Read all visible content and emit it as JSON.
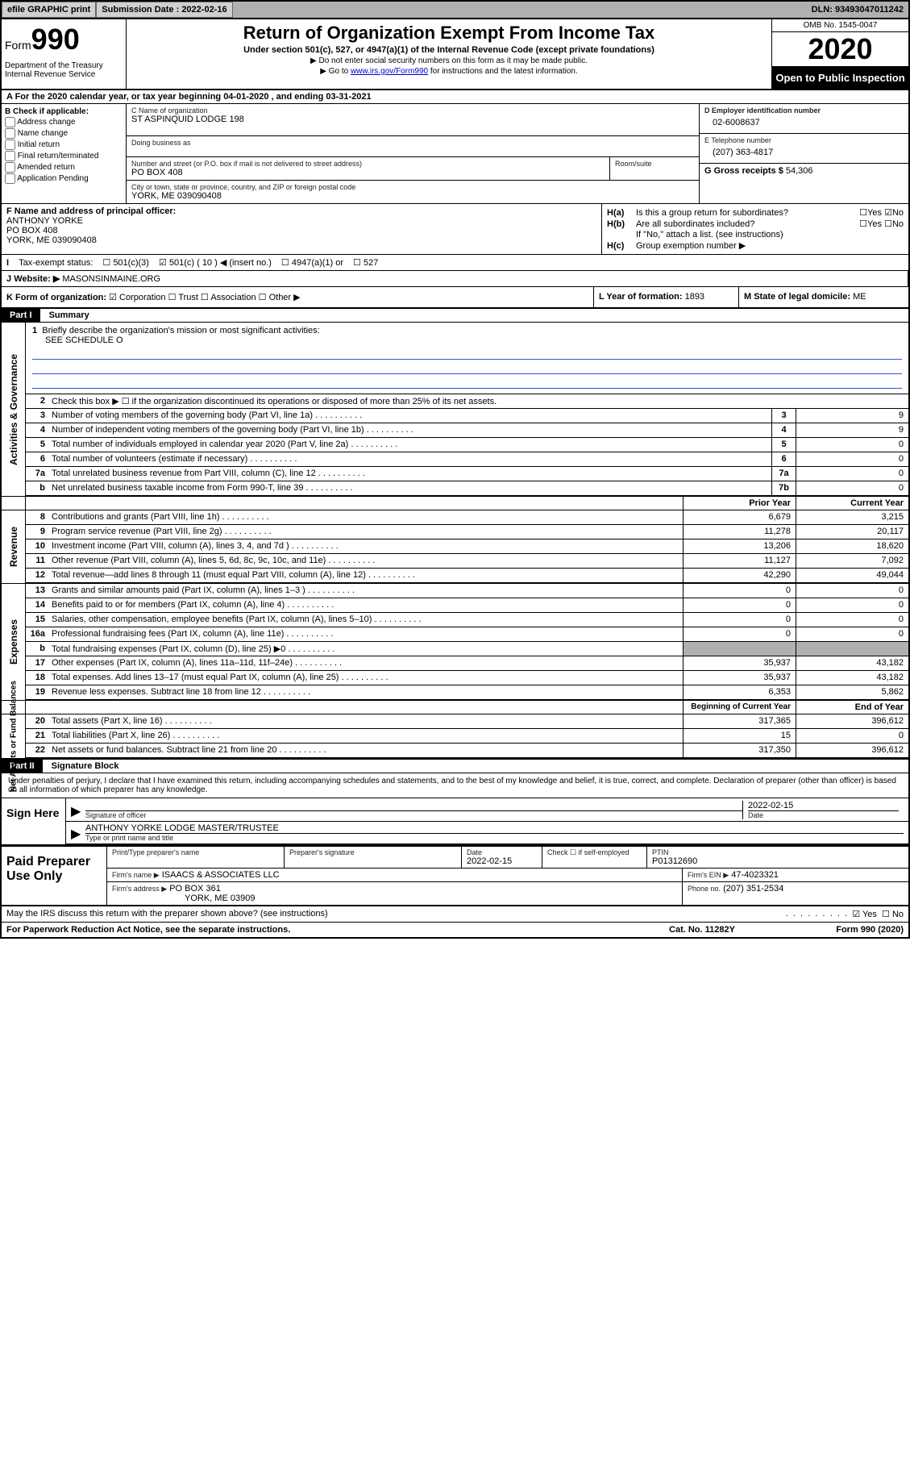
{
  "topbar": {
    "efile": "efile GRAPHIC print",
    "submission_label": "Submission Date : 2022-02-16",
    "dln": "DLN: 93493047011242"
  },
  "header": {
    "form_word": "Form",
    "form_num": "990",
    "dept": "Department of the Treasury\nInternal Revenue Service",
    "title": "Return of Organization Exempt From Income Tax",
    "subtitle": "Under section 501(c), 527, or 4947(a)(1) of the Internal Revenue Code (except private foundations)",
    "note1": "▶ Do not enter social security numbers on this form as it may be made public.",
    "note2_pre": "▶ Go to ",
    "note2_link": "www.irs.gov/Form990",
    "note2_post": " for instructions and the latest information.",
    "omb": "OMB No. 1545-0047",
    "year": "2020",
    "inspect": "Open to Public Inspection"
  },
  "row_a": "A For the 2020 calendar year, or tax year beginning 04-01-2020    , and ending 03-31-2021",
  "b": {
    "label": "B Check if applicable:",
    "opts": [
      "Address change",
      "Name change",
      "Initial return",
      "Final return/terminated",
      "Amended return",
      "Application Pending"
    ]
  },
  "c": {
    "name_lbl": "C Name of organization",
    "name": "ST ASPINQUID LODGE 198",
    "dba_lbl": "Doing business as",
    "dba": "",
    "street_lbl": "Number and street (or P.O. box if mail is not delivered to street address)",
    "street": "PO BOX 408",
    "room_lbl": "Room/suite",
    "city_lbl": "City or town, state or province, country, and ZIP or foreign postal code",
    "city": "YORK, ME  039090408"
  },
  "d": {
    "ein_lbl": "D Employer identification number",
    "ein": "02-6008637",
    "tel_lbl": "E Telephone number",
    "tel": "(207) 363-4817",
    "gross_lbl": "G Gross receipts $",
    "gross": "54,306"
  },
  "f": {
    "lbl": "F Name and address of principal officer:",
    "name": "ANTHONY YORKE",
    "addr1": "PO BOX 408",
    "addr2": "YORK, ME  039090408"
  },
  "h": {
    "a_lbl": "H(a)",
    "a_txt": "Is this a group return for subordinates?",
    "a_yes": "Yes",
    "a_no": "No",
    "b_lbl": "H(b)",
    "b_txt": "Are all subordinates included?",
    "b_note": "If \"No,\" attach a list. (see instructions)",
    "c_lbl": "H(c)",
    "c_txt": "Group exemption number ▶"
  },
  "i": {
    "lbl": "I",
    "txt": "Tax-exempt status:",
    "o1": "501(c)(3)",
    "o2": "501(c) ( 10 ) ◀ (insert no.)",
    "o3": "4947(a)(1) or",
    "o4": "527"
  },
  "j": {
    "lbl": "J",
    "txt": "Website: ▶",
    "val": "MASONSINMAINE.ORG"
  },
  "k": {
    "lbl": "K Form of organization:",
    "o1": "Corporation",
    "o2": "Trust",
    "o3": "Association",
    "o4": "Other ▶",
    "year_lbl": "L Year of formation:",
    "year": "1893",
    "state_lbl": "M State of legal domicile:",
    "state": "ME"
  },
  "part1": {
    "hdr": "Part I",
    "title": "Summary",
    "l1_lbl": "1",
    "l1_txt": "Briefly describe the organization's mission or most significant activities:",
    "l1_val": "SEE SCHEDULE O",
    "l2_lbl": "2",
    "l2_txt": "Check this box ▶ ☐  if the organization discontinued its operations or disposed of more than 25% of its net assets.",
    "side_ag": "Activities & Governance",
    "rows_ag": [
      {
        "n": "3",
        "d": "Number of voting members of the governing body (Part VI, line 1a)",
        "b": "3",
        "v": "9"
      },
      {
        "n": "4",
        "d": "Number of independent voting members of the governing body (Part VI, line 1b)",
        "b": "4",
        "v": "9"
      },
      {
        "n": "5",
        "d": "Total number of individuals employed in calendar year 2020 (Part V, line 2a)",
        "b": "5",
        "v": "0"
      },
      {
        "n": "6",
        "d": "Total number of volunteers (estimate if necessary)",
        "b": "6",
        "v": "0"
      },
      {
        "n": "7a",
        "d": "Total unrelated business revenue from Part VIII, column (C), line 12",
        "b": "7a",
        "v": "0"
      },
      {
        "n": "b",
        "d": "Net unrelated business taxable income from Form 990-T, line 39",
        "b": "7b",
        "v": "0"
      }
    ],
    "col_prior": "Prior Year",
    "col_current": "Current Year",
    "side_rev": "Revenue",
    "rows_rev": [
      {
        "n": "8",
        "d": "Contributions and grants (Part VIII, line 1h)",
        "p": "6,679",
        "c": "3,215"
      },
      {
        "n": "9",
        "d": "Program service revenue (Part VIII, line 2g)",
        "p": "11,278",
        "c": "20,117"
      },
      {
        "n": "10",
        "d": "Investment income (Part VIII, column (A), lines 3, 4, and 7d )",
        "p": "13,206",
        "c": "18,620"
      },
      {
        "n": "11",
        "d": "Other revenue (Part VIII, column (A), lines 5, 6d, 8c, 9c, 10c, and 11e)",
        "p": "11,127",
        "c": "7,092"
      },
      {
        "n": "12",
        "d": "Total revenue—add lines 8 through 11 (must equal Part VIII, column (A), line 12)",
        "p": "42,290",
        "c": "49,044"
      }
    ],
    "side_exp": "Expenses",
    "rows_exp": [
      {
        "n": "13",
        "d": "Grants and similar amounts paid (Part IX, column (A), lines 1–3 )",
        "p": "0",
        "c": "0"
      },
      {
        "n": "14",
        "d": "Benefits paid to or for members (Part IX, column (A), line 4)",
        "p": "0",
        "c": "0"
      },
      {
        "n": "15",
        "d": "Salaries, other compensation, employee benefits (Part IX, column (A), lines 5–10)",
        "p": "0",
        "c": "0"
      },
      {
        "n": "16a",
        "d": "Professional fundraising fees (Part IX, column (A), line 11e)",
        "p": "0",
        "c": "0"
      },
      {
        "n": "b",
        "d": "Total fundraising expenses (Part IX, column (D), line 25) ▶0",
        "p": "",
        "c": "",
        "shade": true
      },
      {
        "n": "17",
        "d": "Other expenses (Part IX, column (A), lines 11a–11d, 11f–24e)",
        "p": "35,937",
        "c": "43,182"
      },
      {
        "n": "18",
        "d": "Total expenses. Add lines 13–17 (must equal Part IX, column (A), line 25)",
        "p": "35,937",
        "c": "43,182"
      },
      {
        "n": "19",
        "d": "Revenue less expenses. Subtract line 18 from line 12",
        "p": "6,353",
        "c": "5,862"
      }
    ],
    "col_begin": "Beginning of Current Year",
    "col_end": "End of Year",
    "side_na": "Net Assets or Fund Balances",
    "rows_na": [
      {
        "n": "20",
        "d": "Total assets (Part X, line 16)",
        "p": "317,365",
        "c": "396,612"
      },
      {
        "n": "21",
        "d": "Total liabilities (Part X, line 26)",
        "p": "15",
        "c": "0"
      },
      {
        "n": "22",
        "d": "Net assets or fund balances. Subtract line 21 from line 20",
        "p": "317,350",
        "c": "396,612"
      }
    ]
  },
  "part2": {
    "hdr": "Part II",
    "title": "Signature Block",
    "declare": "Under penalties of perjury, I declare that I have examined this return, including accompanying schedules and statements, and to the best of my knowledge and belief, it is true, correct, and complete. Declaration of preparer (other than officer) is based on all information of which preparer has any knowledge.",
    "sign_here": "Sign Here",
    "sig_officer_lbl": "Signature of officer",
    "sig_date": "2022-02-15",
    "date_lbl": "Date",
    "name_title": "ANTHONY YORKE  LODGE MASTER/TRUSTEE",
    "name_title_lbl": "Type or print name and title",
    "paid": "Paid Preparer Use Only",
    "prep_name_lbl": "Print/Type preparer's name",
    "prep_sig_lbl": "Preparer's signature",
    "prep_date_lbl": "Date",
    "prep_date": "2022-02-15",
    "prep_check_lbl": "Check ☐ if self-employed",
    "ptin_lbl": "PTIN",
    "ptin": "P01312690",
    "firm_name_lbl": "Firm's name    ▶",
    "firm_name": "ISAACS & ASSOCIATES LLC",
    "firm_ein_lbl": "Firm's EIN ▶",
    "firm_ein": "47-4023321",
    "firm_addr_lbl": "Firm's address ▶",
    "firm_addr1": "PO BOX 361",
    "firm_addr2": "YORK, ME  03909",
    "phone_lbl": "Phone no.",
    "phone": "(207) 351-2534",
    "discuss": "May the IRS discuss this return with the preparer shown above? (see instructions)",
    "discuss_yes": "Yes",
    "discuss_no": "No"
  },
  "footer": {
    "pra": "For Paperwork Reduction Act Notice, see the separate instructions.",
    "cat": "Cat. No. 11282Y",
    "form": "Form 990 (2020)"
  }
}
